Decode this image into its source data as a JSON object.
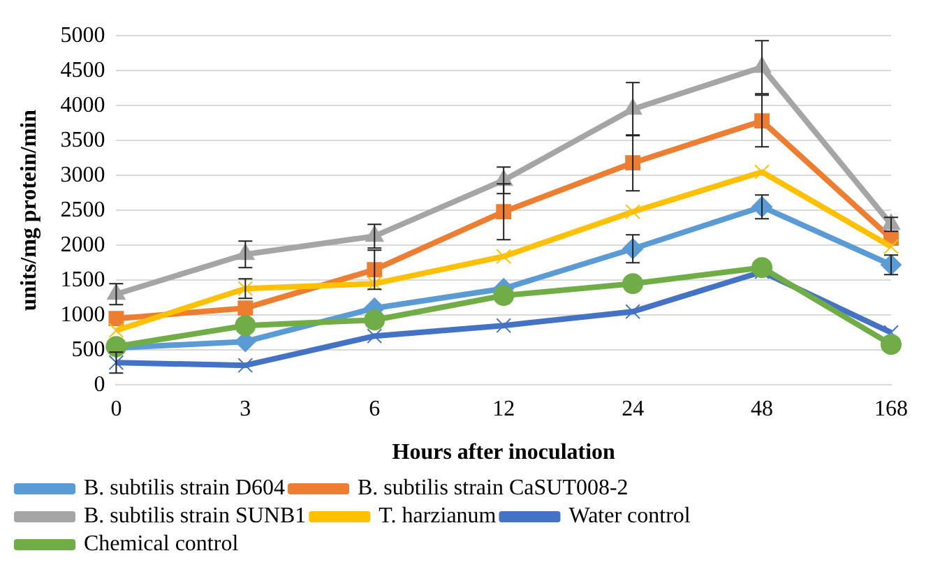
{
  "chart_data": {
    "type": "line",
    "xlabel": "Hours after inoculation",
    "ylabel": "units/mg protein/min",
    "categories": [
      "0",
      "3",
      "6",
      "12",
      "24",
      "48",
      "168"
    ],
    "ylim": [
      0,
      5000
    ],
    "yticks": [
      0,
      500,
      1000,
      1500,
      2000,
      2500,
      3000,
      3500,
      4000,
      4500,
      5000
    ],
    "grid": "y",
    "legend": "bottom",
    "series": [
      {
        "name": "B. subtilis strain D604",
        "color": "#5b9bd5",
        "marker": "diamond",
        "values": [
          530,
          620,
          1100,
          1380,
          1950,
          2550,
          1720
        ],
        "errors": [
          null,
          null,
          null,
          null,
          200,
          170,
          140
        ]
      },
      {
        "name": "B. subtilis strain CaSUT008-2",
        "color": "#ed7d31",
        "marker": "square",
        "values": [
          950,
          1100,
          1650,
          2480,
          3180,
          3780,
          2100
        ],
        "errors": [
          null,
          null,
          280,
          400,
          400,
          370,
          null
        ]
      },
      {
        "name": "B. subtilis strain SUNB1",
        "color": "#a5a5a5",
        "marker": "triangle",
        "values": [
          1300,
          1870,
          2130,
          2930,
          3950,
          4550,
          2300
        ],
        "errors": [
          150,
          190,
          170,
          190,
          380,
          380,
          100
        ]
      },
      {
        "name": "T. harzianum",
        "color": "#ffc000",
        "marker": "cross",
        "values": [
          780,
          1380,
          1450,
          1840,
          2480,
          3050,
          1980
        ],
        "errors": [
          null,
          140,
          null,
          null,
          null,
          null,
          null
        ]
      },
      {
        "name": "Water control",
        "color": "#4472c4",
        "marker": "cross",
        "values": [
          320,
          280,
          700,
          850,
          1050,
          1620,
          750
        ],
        "errors": [
          150,
          null,
          null,
          null,
          null,
          null,
          null
        ]
      },
      {
        "name": "Chemical control",
        "color": "#70ad47",
        "marker": "circle",
        "values": [
          550,
          850,
          930,
          1280,
          1450,
          1680,
          580
        ]
      }
    ]
  }
}
